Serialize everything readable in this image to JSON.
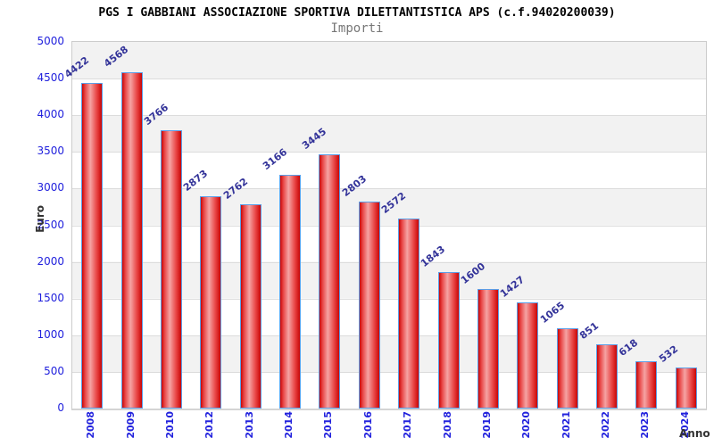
{
  "header": {
    "title": "PGS I GABBIANI ASSOCIAZIONE SPORTIVA DILETTANTISTICA APS (c.f.94020200039)",
    "subtitle": "Importi"
  },
  "axes": {
    "y_label": "Euro",
    "x_label": "Anno"
  },
  "chart_data": {
    "type": "bar",
    "title": "PGS I GABBIANI ASSOCIAZIONE SPORTIVA DILETTANTISTICA APS (c.f.94020200039)",
    "subtitle": "Importi",
    "xlabel": "Anno",
    "ylabel": "Euro",
    "ylim": [
      0,
      5000
    ],
    "ytick_step": 500,
    "y_ticks": [
      0,
      500,
      1000,
      1500,
      2000,
      2500,
      3000,
      3500,
      4000,
      4500,
      5000
    ],
    "categories": [
      "2008",
      "2009",
      "2010",
      "2012",
      "2013",
      "2014",
      "2015",
      "2016",
      "2017",
      "2018",
      "2019",
      "2020",
      "2021",
      "2022",
      "2023",
      "2024"
    ],
    "values": [
      4422,
      4568,
      3766,
      2873,
      2762,
      3166,
      3445,
      2803,
      2572,
      1843,
      1600,
      1427,
      1065,
      851,
      618,
      532
    ],
    "grid": "horizontal, alternating gray/white 500-unit bands",
    "legend": "none",
    "bar_labels_rotated": true,
    "x_labels_rotated": true
  },
  "colors": {
    "bar_edge": "#c90606",
    "bar_mid": "#f5a3a3",
    "bar_border": "#5b9fe8",
    "tick_label": "#2222dd",
    "value_label": "#333399",
    "band_gray": "#f2f2f2",
    "grid_line": "#dcdcdc",
    "plot_border": "#cccccc",
    "title_color": "#000000",
    "subtitle_color": "#777777",
    "axis_title_color": "#333333"
  }
}
